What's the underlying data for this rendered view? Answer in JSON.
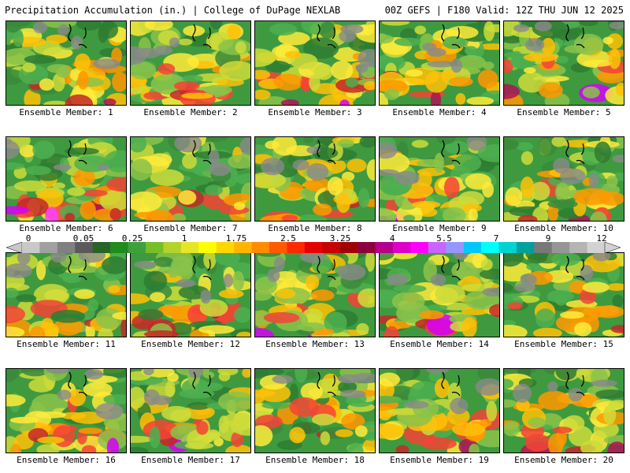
{
  "header": {
    "title_left": "Precipitation Accumulation (in.) | College of DuPage NEXLAB",
    "title_right": "00Z GEFS | F180 Valid: 12Z THU JUN 12 2025"
  },
  "colorbar": {
    "tick_labels": [
      "0",
      "0.05",
      "0.25",
      "1",
      "1.75",
      "2.5",
      "3.25",
      "4",
      "5.5",
      "7",
      "9",
      "12"
    ],
    "colors": [
      "#c8c8c8",
      "#a0a0a0",
      "#808080",
      "#5a5a5a",
      "#286428",
      "#1e8c1e",
      "#3ca03c",
      "#78be28",
      "#b4d228",
      "#e6e628",
      "#ffff00",
      "#ffd700",
      "#ffb400",
      "#ff8c00",
      "#ff5a00",
      "#ff2800",
      "#e60000",
      "#c80000",
      "#a00000",
      "#8c003c",
      "#b4008c",
      "#dc00c8",
      "#ff00ff",
      "#c864ff",
      "#9696ff",
      "#00c8ff",
      "#00ffff",
      "#00d2d2",
      "#00a0a0",
      "#787878",
      "#969696",
      "#b4b4b4",
      "#d2d2d2"
    ]
  },
  "panels": [
    {
      "label": "Ensemble Member: 1"
    },
    {
      "label": "Ensemble Member: 2"
    },
    {
      "label": "Ensemble Member: 3"
    },
    {
      "label": "Ensemble Member: 4"
    },
    {
      "label": "Ensemble Member: 5"
    },
    {
      "label": "Ensemble Member: 6"
    },
    {
      "label": "Ensemble Member: 7"
    },
    {
      "label": "Ensemble Member: 8"
    },
    {
      "label": "Ensemble Member: 9"
    },
    {
      "label": "Ensemble Member: 10"
    },
    {
      "label": "Ensemble Member: 11"
    },
    {
      "label": "Ensemble Member: 12"
    },
    {
      "label": "Ensemble Member: 13"
    },
    {
      "label": "Ensemble Member: 14"
    },
    {
      "label": "Ensemble Member: 15"
    },
    {
      "label": "Ensemble Member: 16"
    },
    {
      "label": "Ensemble Member: 17"
    },
    {
      "label": "Ensemble Member: 18"
    },
    {
      "label": "Ensemble Member: 19"
    },
    {
      "label": "Ensemble Member: 20"
    }
  ]
}
